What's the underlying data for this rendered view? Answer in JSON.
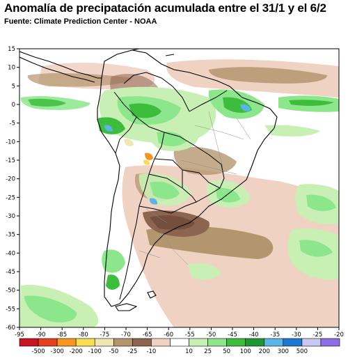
{
  "header": {
    "title": "Anomalía de precipatación acumulada entre el 31/1 y el 6/2",
    "subtitle": "Fuente: Climate Prediction Center - NOAA"
  },
  "map": {
    "lon_range": [
      -95,
      -20
    ],
    "lat_range": [
      -60,
      15
    ],
    "lon_ticks": [
      "-95",
      "-90",
      "-85",
      "-80",
      "-75",
      "-70",
      "-65",
      "-60",
      "-55",
      "-50",
      "-45",
      "-40",
      "-35",
      "-30",
      "-25",
      "-20"
    ],
    "lat_ticks": [
      "15",
      "10",
      "5",
      "0",
      "-5",
      "-10",
      "-15",
      "-20",
      "-25",
      "-30",
      "-35",
      "-40",
      "-45",
      "-50",
      "-55",
      "-60"
    ]
  },
  "legend": {
    "colors": [
      "#c8141e",
      "#e6401e",
      "#f5961e",
      "#fadc50",
      "#f0e6b4",
      "#b4966e",
      "#8c6450",
      "#f0d2c3",
      "#ffffff",
      "#c8f0b4",
      "#8ce68c",
      "#3cbe3c",
      "#1e9632",
      "#5ab4e6",
      "#1e78d2",
      "#c8c8f0",
      "#8c6ee6"
    ],
    "labels": [
      "-500",
      "-300",
      "-200",
      "-100",
      "-50",
      "-25",
      "-10",
      "10",
      "25",
      "50",
      "100",
      "200",
      "300",
      "500"
    ]
  }
}
